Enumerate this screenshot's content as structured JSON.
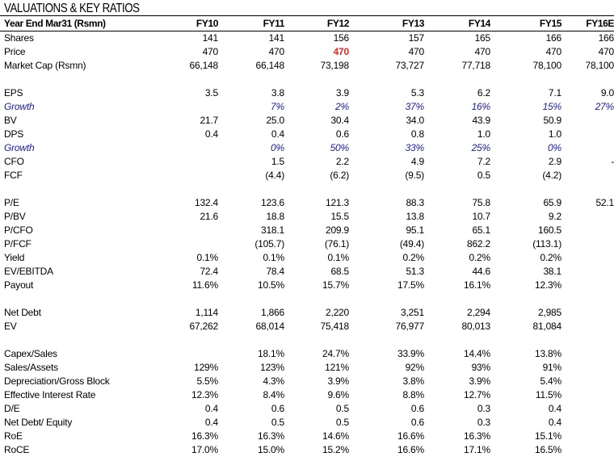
{
  "title": "VALUATIONS & KEY RATIOS",
  "header": {
    "label": "Year End Mar31 (Rsmn)",
    "columns": [
      "FY10",
      "FY11",
      "FY12",
      "FY13",
      "FY14",
      "FY15",
      "FY16E"
    ]
  },
  "rows": [
    {
      "label": "Shares",
      "values": [
        "141",
        "141",
        "156",
        "157",
        "165",
        "166",
        "166"
      ]
    },
    {
      "label": "Price",
      "values": [
        "470",
        "470",
        "470",
        "470",
        "470",
        "470",
        "470"
      ],
      "highlight_index": 2,
      "highlight_color": "#e8261c"
    },
    {
      "label": "Market Cap (Rsmn)",
      "values": [
        "66,148",
        "66,148",
        "73,198",
        "73,727",
        "77,718",
        "78,100",
        "78,100"
      ]
    },
    {
      "spacer": true
    },
    {
      "label": "EPS",
      "values": [
        "3.5",
        "3.8",
        "3.9",
        "5.3",
        "6.2",
        "7.1",
        "9.0"
      ]
    },
    {
      "label": "Growth",
      "italic": true,
      "values": [
        "",
        "7%",
        "2%",
        "37%",
        "16%",
        "15%",
        "27%"
      ]
    },
    {
      "label": "BV",
      "values": [
        "21.7",
        "25.0",
        "30.4",
        "34.0",
        "43.9",
        "50.9",
        ""
      ]
    },
    {
      "label": "DPS",
      "values": [
        "0.4",
        "0.4",
        "0.6",
        "0.8",
        "1.0",
        "1.0",
        ""
      ]
    },
    {
      "label": "Growth",
      "italic": true,
      "values": [
        "",
        "0%",
        "50%",
        "33%",
        "25%",
        "0%",
        ""
      ]
    },
    {
      "label": "CFO",
      "values": [
        "",
        "1.5",
        "2.2",
        "4.9",
        "7.2",
        "2.9",
        "-"
      ]
    },
    {
      "label": "FCF",
      "values": [
        "",
        "(4.4)",
        "(6.2)",
        "(9.5)",
        "0.5",
        "(4.2)",
        ""
      ]
    },
    {
      "spacer": true
    },
    {
      "label": "P/E",
      "values": [
        "132.4",
        "123.6",
        "121.3",
        "88.3",
        "75.8",
        "65.9",
        "52.1"
      ]
    },
    {
      "label": "P/BV",
      "values": [
        "21.6",
        "18.8",
        "15.5",
        "13.8",
        "10.7",
        "9.2",
        ""
      ]
    },
    {
      "label": "P/CFO",
      "values": [
        "",
        "318.1",
        "209.9",
        "95.1",
        "65.1",
        "160.5",
        ""
      ]
    },
    {
      "label": "P/FCF",
      "values": [
        "",
        "(105.7)",
        "(76.1)",
        "(49.4)",
        "862.2",
        "(113.1)",
        ""
      ]
    },
    {
      "label": "Yield",
      "values": [
        "0.1%",
        "0.1%",
        "0.1%",
        "0.2%",
        "0.2%",
        "0.2%",
        ""
      ]
    },
    {
      "label": "EV/EBITDA",
      "values": [
        "72.4",
        "78.4",
        "68.5",
        "51.3",
        "44.6",
        "38.1",
        ""
      ]
    },
    {
      "label": "Payout",
      "values": [
        "11.6%",
        "10.5%",
        "15.7%",
        "17.5%",
        "16.1%",
        "12.3%",
        ""
      ]
    },
    {
      "spacer": true
    },
    {
      "label": "Net Debt",
      "values": [
        "1,114",
        "1,866",
        "2,220",
        "3,251",
        "2,294",
        "2,985",
        ""
      ]
    },
    {
      "label": "EV",
      "values": [
        "67,262",
        "68,014",
        "75,418",
        "76,977",
        "80,013",
        "81,084",
        ""
      ]
    },
    {
      "spacer": true
    },
    {
      "label": "Capex/Sales",
      "values": [
        "",
        "18.1%",
        "24.7%",
        "33.9%",
        "14.4%",
        "13.8%",
        ""
      ]
    },
    {
      "label": "Sales/Assets",
      "values": [
        "129%",
        "123%",
        "121%",
        "92%",
        "93%",
        "91%",
        ""
      ]
    },
    {
      "label": "Depreciation/Gross Block",
      "values": [
        "5.5%",
        "4.3%",
        "3.9%",
        "3.8%",
        "3.9%",
        "5.4%",
        ""
      ]
    },
    {
      "label": "Effective Interest Rate",
      "values": [
        "12.3%",
        "8.4%",
        "9.6%",
        "8.8%",
        "12.7%",
        "11.5%",
        ""
      ]
    },
    {
      "label": "D/E",
      "values": [
        "0.4",
        "0.6",
        "0.5",
        "0.6",
        "0.3",
        "0.4",
        ""
      ]
    },
    {
      "label": "Net Debt/ Equity",
      "values": [
        "0.4",
        "0.5",
        "0.5",
        "0.6",
        "0.3",
        "0.4",
        ""
      ]
    },
    {
      "label": "RoE",
      "values": [
        "16.3%",
        "16.3%",
        "14.6%",
        "16.6%",
        "16.3%",
        "15.1%",
        ""
      ]
    },
    {
      "label": "RoCE",
      "values": [
        "17.0%",
        "15.0%",
        "15.2%",
        "16.6%",
        "17.1%",
        "16.5%",
        ""
      ]
    }
  ]
}
